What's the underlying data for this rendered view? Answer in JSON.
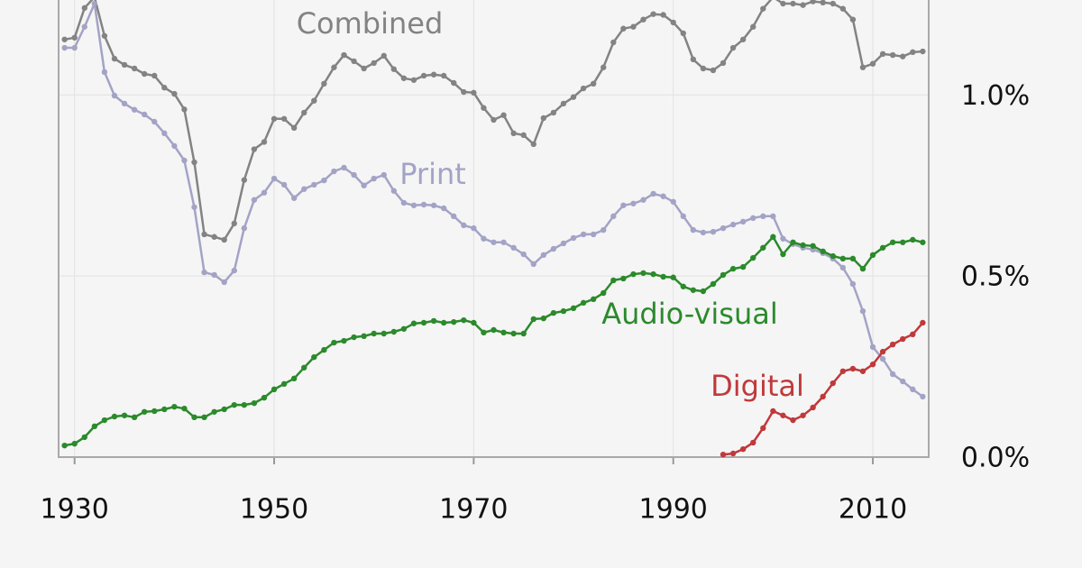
{
  "chart_data": {
    "type": "line",
    "x": [
      1929,
      1930,
      1931,
      1932,
      1933,
      1934,
      1935,
      1936,
      1937,
      1938,
      1939,
      1940,
      1941,
      1942,
      1943,
      1944,
      1945,
      1946,
      1947,
      1948,
      1949,
      1950,
      1951,
      1952,
      1953,
      1954,
      1955,
      1956,
      1957,
      1958,
      1959,
      1960,
      1961,
      1962,
      1963,
      1964,
      1965,
      1966,
      1967,
      1968,
      1969,
      1970,
      1971,
      1972,
      1973,
      1974,
      1975,
      1976,
      1977,
      1978,
      1979,
      1980,
      1981,
      1982,
      1983,
      1984,
      1985,
      1986,
      1987,
      1988,
      1989,
      1990,
      1991,
      1992,
      1993,
      1994,
      1995,
      1996,
      1997,
      1998,
      1999,
      2000,
      2001,
      2002,
      2003,
      2004,
      2005,
      2006,
      2007,
      2008,
      2009,
      2010,
      2011,
      2012,
      2013,
      2014,
      2015
    ],
    "series": [
      {
        "name": "Combined",
        "color": "#838383",
        "values": [
          1.153,
          1.158,
          1.24,
          1.27,
          1.163,
          1.1,
          1.083,
          1.073,
          1.058,
          1.053,
          1.02,
          1.003,
          0.96,
          0.814,
          0.615,
          0.608,
          0.6,
          0.645,
          0.765,
          0.85,
          0.87,
          0.934,
          0.934,
          0.909,
          0.951,
          0.984,
          1.031,
          1.076,
          1.11,
          1.093,
          1.073,
          1.088,
          1.108,
          1.071,
          1.046,
          1.041,
          1.053,
          1.056,
          1.053,
          1.033,
          1.008,
          1.006,
          0.964,
          0.931,
          0.944,
          0.894,
          0.889,
          0.864,
          0.936,
          0.951,
          0.976,
          0.994,
          1.018,
          1.031,
          1.076,
          1.145,
          1.183,
          1.188,
          1.208,
          1.223,
          1.221,
          1.2,
          1.17,
          1.098,
          1.073,
          1.068,
          1.088,
          1.13,
          1.153,
          1.188,
          1.238,
          1.27,
          1.252,
          1.252,
          1.248,
          1.258,
          1.255,
          1.252,
          1.238,
          1.208,
          1.076,
          1.086,
          1.113,
          1.11,
          1.106,
          1.118,
          1.12
        ]
      },
      {
        "name": "Print",
        "color": "#a3a3c6",
        "values": [
          1.13,
          1.13,
          1.188,
          1.252,
          1.063,
          0.998,
          0.976,
          0.959,
          0.946,
          0.926,
          0.894,
          0.859,
          0.819,
          0.69,
          0.51,
          0.503,
          0.483,
          0.515,
          0.632,
          0.71,
          0.73,
          0.769,
          0.752,
          0.715,
          0.74,
          0.752,
          0.764,
          0.789,
          0.799,
          0.779,
          0.75,
          0.769,
          0.779,
          0.735,
          0.702,
          0.695,
          0.697,
          0.695,
          0.687,
          0.665,
          0.64,
          0.632,
          0.603,
          0.593,
          0.593,
          0.578,
          0.56,
          0.533,
          0.558,
          0.575,
          0.59,
          0.605,
          0.615,
          0.615,
          0.627,
          0.665,
          0.695,
          0.7,
          0.71,
          0.727,
          0.72,
          0.705,
          0.665,
          0.627,
          0.62,
          0.622,
          0.632,
          0.642,
          0.65,
          0.66,
          0.665,
          0.665,
          0.603,
          0.588,
          0.578,
          0.573,
          0.563,
          0.548,
          0.523,
          0.478,
          0.403,
          0.304,
          0.271,
          0.229,
          0.209,
          0.187,
          0.167
        ]
      },
      {
        "name": "Audio-visual",
        "color": "#2b8a2b",
        "values": [
          0.032,
          0.037,
          0.055,
          0.085,
          0.102,
          0.112,
          0.115,
          0.11,
          0.125,
          0.127,
          0.132,
          0.139,
          0.134,
          0.11,
          0.11,
          0.125,
          0.132,
          0.144,
          0.144,
          0.149,
          0.164,
          0.187,
          0.202,
          0.217,
          0.247,
          0.276,
          0.296,
          0.316,
          0.321,
          0.331,
          0.334,
          0.341,
          0.341,
          0.346,
          0.354,
          0.369,
          0.371,
          0.376,
          0.371,
          0.373,
          0.378,
          0.371,
          0.344,
          0.351,
          0.344,
          0.341,
          0.341,
          0.381,
          0.383,
          0.398,
          0.403,
          0.411,
          0.426,
          0.436,
          0.453,
          0.488,
          0.493,
          0.505,
          0.508,
          0.505,
          0.498,
          0.496,
          0.471,
          0.461,
          0.458,
          0.478,
          0.503,
          0.52,
          0.525,
          0.55,
          0.578,
          0.608,
          0.56,
          0.593,
          0.585,
          0.583,
          0.568,
          0.555,
          0.548,
          0.548,
          0.52,
          0.558,
          0.578,
          0.593,
          0.593,
          0.6,
          0.593
        ]
      },
      {
        "name": "Digital",
        "color": "#c0393b",
        "values": [
          null,
          null,
          null,
          null,
          null,
          null,
          null,
          null,
          null,
          null,
          null,
          null,
          null,
          null,
          null,
          null,
          null,
          null,
          null,
          null,
          null,
          null,
          null,
          null,
          null,
          null,
          null,
          null,
          null,
          null,
          null,
          null,
          null,
          null,
          null,
          null,
          null,
          null,
          null,
          null,
          null,
          null,
          null,
          null,
          null,
          null,
          null,
          null,
          null,
          null,
          null,
          null,
          null,
          null,
          null,
          null,
          null,
          null,
          null,
          null,
          null,
          null,
          null,
          null,
          null,
          null,
          0.007,
          0.01,
          0.022,
          0.04,
          0.08,
          0.127,
          0.115,
          0.102,
          0.115,
          0.137,
          0.167,
          0.204,
          0.237,
          0.244,
          0.237,
          0.256,
          0.291,
          0.311,
          0.326,
          0.339,
          0.371
        ]
      }
    ],
    "xlim": [
      1928.4,
      2015.6
    ],
    "xticks": [
      1930,
      1950,
      1970,
      1990,
      2010
    ],
    "ylim": [
      0,
      1.262
    ],
    "yticks": [
      {
        "value": 0,
        "label": "0.0%"
      },
      {
        "value": 0.5,
        "label": "0.5%"
      },
      {
        "value": 1.0,
        "label": "1.0%"
      }
    ],
    "grid": true
  }
}
